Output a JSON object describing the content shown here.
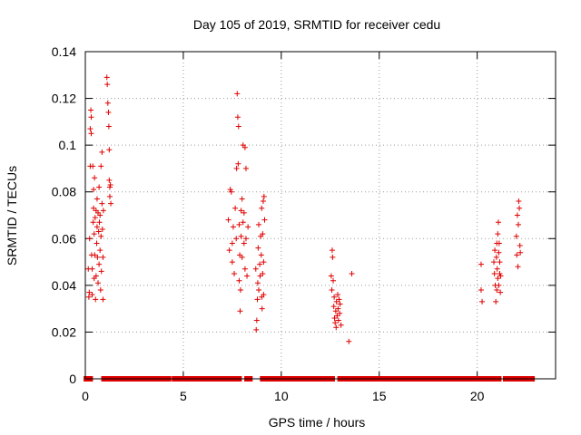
{
  "chart_data": {
    "type": "scatter",
    "title": "Day 105 of 2019, SRMTID for receiver cedu",
    "xlabel": "GPS time / hours",
    "ylabel": "SRMTID / TECUs",
    "xlim": [
      0,
      24
    ],
    "ylim": [
      0,
      0.14
    ],
    "xticks": [
      0,
      5,
      10,
      15,
      20
    ],
    "xtick_labels": [
      "0",
      "5",
      "10",
      "15",
      "20"
    ],
    "yticks": [
      0,
      0.02,
      0.04,
      0.06,
      0.08,
      0.1,
      0.12,
      0.14
    ],
    "ytick_labels": [
      "0",
      "0.02",
      "0.04",
      "0.06",
      "0.08",
      "0.1",
      "0.12",
      "0.14"
    ],
    "grid": true,
    "marker": "+",
    "color": "#e00000",
    "series": [
      {
        "name": "SRMTID",
        "points": [
          [
            0.15,
            0.047
          ],
          [
            0.18,
            0.035
          ],
          [
            0.2,
            0.037
          ],
          [
            0.22,
            0.06
          ],
          [
            0.25,
            0.091
          ],
          [
            0.25,
            0.107
          ],
          [
            0.28,
            0.115
          ],
          [
            0.3,
            0.112
          ],
          [
            0.3,
            0.105
          ],
          [
            0.32,
            0.053
          ],
          [
            0.35,
            0.036
          ],
          [
            0.35,
            0.047
          ],
          [
            0.38,
            0.091
          ],
          [
            0.4,
            0.067
          ],
          [
            0.42,
            0.081
          ],
          [
            0.42,
            0.073
          ],
          [
            0.45,
            0.043
          ],
          [
            0.45,
            0.062
          ],
          [
            0.47,
            0.086
          ],
          [
            0.48,
            0.053
          ],
          [
            0.5,
            0.069
          ],
          [
            0.52,
            0.034
          ],
          [
            0.55,
            0.044
          ],
          [
            0.55,
            0.072
          ],
          [
            0.58,
            0.058
          ],
          [
            0.6,
            0.077
          ],
          [
            0.6,
            0.065
          ],
          [
            0.62,
            0.052
          ],
          [
            0.65,
            0.071
          ],
          [
            0.65,
            0.041
          ],
          [
            0.68,
            0.063
          ],
          [
            0.7,
            0.049
          ],
          [
            0.7,
            0.082
          ],
          [
            0.72,
            0.067
          ],
          [
            0.75,
            0.055
          ],
          [
            0.75,
            0.07
          ],
          [
            0.78,
            0.038
          ],
          [
            0.8,
            0.091
          ],
          [
            0.8,
            0.061
          ],
          [
            0.82,
            0.046
          ],
          [
            0.85,
            0.075
          ],
          [
            0.85,
            0.097
          ],
          [
            0.87,
            0.064
          ],
          [
            0.9,
            0.034
          ],
          [
            0.9,
            0.052
          ],
          [
            0.92,
            0.072
          ],
          [
            1.1,
            0.129
          ],
          [
            1.12,
            0.126
          ],
          [
            1.15,
            0.118
          ],
          [
            1.18,
            0.114
          ],
          [
            1.2,
            0.108
          ],
          [
            1.22,
            0.098
          ],
          [
            1.22,
            0.085
          ],
          [
            1.25,
            0.082
          ],
          [
            1.25,
            0.078
          ],
          [
            1.28,
            0.083
          ],
          [
            1.3,
            0.075
          ],
          [
            7.3,
            0.068
          ],
          [
            7.35,
            0.055
          ],
          [
            7.4,
            0.081
          ],
          [
            7.45,
            0.08
          ],
          [
            7.5,
            0.05
          ],
          [
            7.5,
            0.058
          ],
          [
            7.55,
            0.065
          ],
          [
            7.6,
            0.045
          ],
          [
            7.65,
            0.073
          ],
          [
            7.7,
            0.06
          ],
          [
            7.72,
            0.09
          ],
          [
            7.75,
            0.122
          ],
          [
            7.78,
            0.112
          ],
          [
            7.8,
            0.092
          ],
          [
            7.82,
            0.108
          ],
          [
            7.85,
            0.066
          ],
          [
            7.85,
            0.042
          ],
          [
            7.88,
            0.053
          ],
          [
            7.9,
            0.029
          ],
          [
            7.92,
            0.038
          ],
          [
            7.95,
            0.061
          ],
          [
            7.95,
            0.072
          ],
          [
            8.0,
            0.077
          ],
          [
            8.0,
            0.052
          ],
          [
            8.05,
            0.067
          ],
          [
            8.05,
            0.1
          ],
          [
            8.1,
            0.071
          ],
          [
            8.1,
            0.058
          ],
          [
            8.15,
            0.047
          ],
          [
            8.15,
            0.099
          ],
          [
            8.2,
            0.09
          ],
          [
            8.2,
            0.06
          ],
          [
            8.25,
            0.044
          ],
          [
            8.3,
            0.065
          ],
          [
            8.7,
            0.047
          ],
          [
            8.72,
            0.021
          ],
          [
            8.75,
            0.025
          ],
          [
            8.78,
            0.034
          ],
          [
            8.8,
            0.041
          ],
          [
            8.82,
            0.056
          ],
          [
            8.85,
            0.066
          ],
          [
            8.85,
            0.038
          ],
          [
            8.9,
            0.049
          ],
          [
            8.92,
            0.044
          ],
          [
            8.95,
            0.061
          ],
          [
            8.98,
            0.053
          ],
          [
            9.0,
            0.073
          ],
          [
            9.0,
            0.035
          ],
          [
            9.02,
            0.03
          ],
          [
            9.05,
            0.062
          ],
          [
            9.05,
            0.045
          ],
          [
            9.08,
            0.076
          ],
          [
            9.1,
            0.05
          ],
          [
            9.1,
            0.036
          ],
          [
            9.12,
            0.078
          ],
          [
            9.15,
            0.068
          ],
          [
            12.55,
            0.044
          ],
          [
            12.58,
            0.038
          ],
          [
            12.6,
            0.055
          ],
          [
            12.62,
            0.052
          ],
          [
            12.65,
            0.042
          ],
          [
            12.68,
            0.031
          ],
          [
            12.7,
            0.035
          ],
          [
            12.72,
            0.026
          ],
          [
            12.75,
            0.024
          ],
          [
            12.78,
            0.029
          ],
          [
            12.8,
            0.022
          ],
          [
            12.82,
            0.033
          ],
          [
            12.85,
            0.027
          ],
          [
            12.88,
            0.036
          ],
          [
            12.9,
            0.03
          ],
          [
            12.92,
            0.025
          ],
          [
            12.95,
            0.034
          ],
          [
            12.98,
            0.028
          ],
          [
            13.0,
            0.032
          ],
          [
            13.05,
            0.023
          ],
          [
            13.45,
            0.016
          ],
          [
            13.6,
            0.045
          ],
          [
            20.2,
            0.049
          ],
          [
            20.2,
            0.038
          ],
          [
            20.25,
            0.033
          ],
          [
            20.85,
            0.05
          ],
          [
            20.88,
            0.045
          ],
          [
            20.9,
            0.055
          ],
          [
            20.92,
            0.04
          ],
          [
            20.95,
            0.033
          ],
          [
            20.98,
            0.052
          ],
          [
            21.0,
            0.058
          ],
          [
            21.0,
            0.038
          ],
          [
            21.02,
            0.047
          ],
          [
            21.05,
            0.062
          ],
          [
            21.05,
            0.043
          ],
          [
            21.08,
            0.067
          ],
          [
            21.1,
            0.054
          ],
          [
            21.1,
            0.04
          ],
          [
            21.12,
            0.058
          ],
          [
            21.15,
            0.05
          ],
          [
            21.15,
            0.045
          ],
          [
            21.18,
            0.037
          ],
          [
            21.2,
            0.044
          ],
          [
            22.0,
            0.061
          ],
          [
            22.02,
            0.053
          ],
          [
            22.05,
            0.07
          ],
          [
            22.08,
            0.048
          ],
          [
            22.1,
            0.066
          ],
          [
            22.12,
            0.076
          ],
          [
            22.15,
            0.073
          ],
          [
            22.18,
            0.057
          ],
          [
            22.2,
            0.054
          ]
        ],
        "zero_segments": [
          [
            0.05,
            0.25
          ],
          [
            0.95,
            1.25
          ],
          [
            1.35,
            3.5
          ],
          [
            3.65,
            3.85
          ],
          [
            4.0,
            4.25
          ],
          [
            4.55,
            4.8
          ],
          [
            4.95,
            7.4
          ],
          [
            7.55,
            7.85
          ],
          [
            8.25,
            8.4
          ],
          [
            9.05,
            10.5
          ],
          [
            10.75,
            12.6
          ],
          [
            13.0,
            15.3
          ],
          [
            15.4,
            20.05
          ],
          [
            20.15,
            20.6
          ],
          [
            20.75,
            21.1
          ],
          [
            21.45,
            22.8
          ]
        ]
      }
    ]
  }
}
